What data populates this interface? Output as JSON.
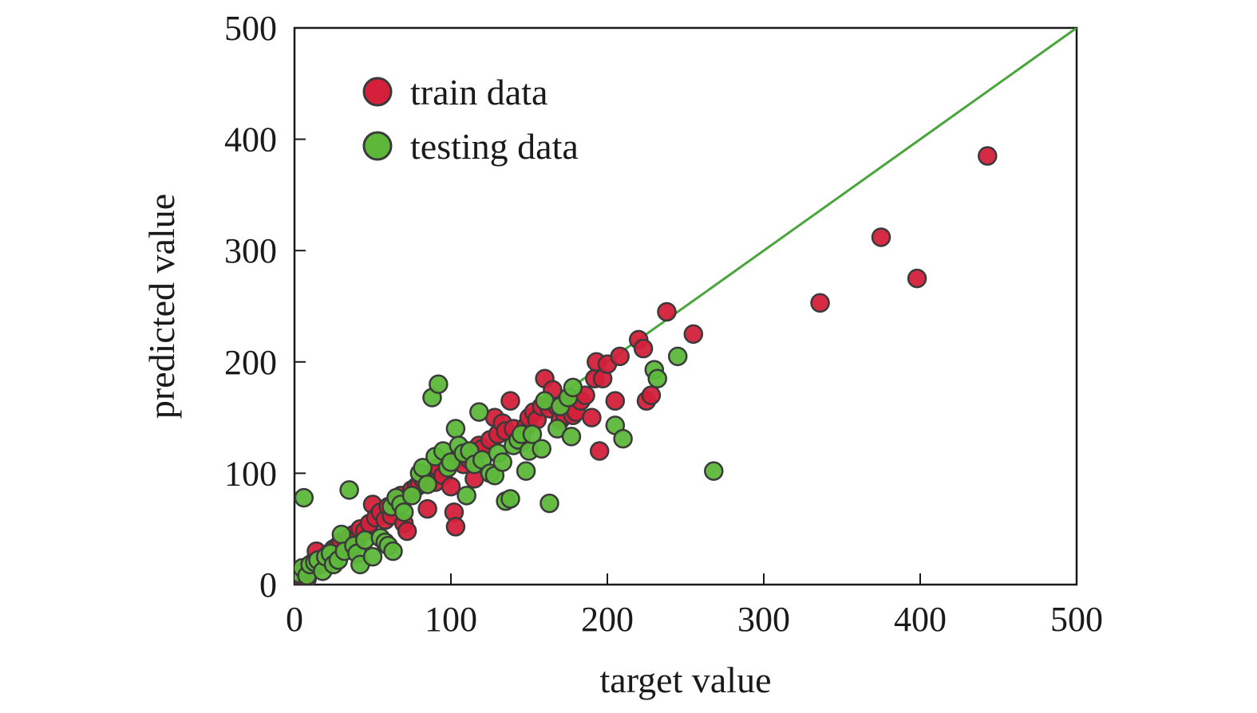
{
  "chart_data": {
    "type": "scatter",
    "xlabel": "target value",
    "ylabel": "predicted value",
    "xlim": [
      0,
      500
    ],
    "ylim": [
      0,
      500
    ],
    "xticks": [
      "0",
      "100",
      "200",
      "300",
      "400",
      "500"
    ],
    "yticks": [
      "0",
      "100",
      "200",
      "300",
      "400",
      "500"
    ],
    "grid": false,
    "legend_position": "top-left",
    "reference_line": {
      "x": [
        0,
        500
      ],
      "y": [
        0,
        500
      ],
      "color": "#4aa63c"
    },
    "series": [
      {
        "name": "train data",
        "color": "#d4203a",
        "points": [
          [
            2,
            3
          ],
          [
            4,
            8
          ],
          [
            6,
            12
          ],
          [
            8,
            5
          ],
          [
            10,
            15
          ],
          [
            12,
            20
          ],
          [
            14,
            30
          ],
          [
            16,
            18
          ],
          [
            18,
            22
          ],
          [
            20,
            25
          ],
          [
            22,
            28
          ],
          [
            25,
            32
          ],
          [
            28,
            35
          ],
          [
            30,
            38
          ],
          [
            32,
            30
          ],
          [
            35,
            42
          ],
          [
            38,
            45
          ],
          [
            40,
            40
          ],
          [
            42,
            50
          ],
          [
            45,
            48
          ],
          [
            48,
            55
          ],
          [
            50,
            72
          ],
          [
            52,
            60
          ],
          [
            55,
            65
          ],
          [
            58,
            58
          ],
          [
            60,
            70
          ],
          [
            62,
            62
          ],
          [
            65,
            75
          ],
          [
            68,
            80
          ],
          [
            70,
            55
          ],
          [
            72,
            48
          ],
          [
            75,
            85
          ],
          [
            78,
            88
          ],
          [
            80,
            90
          ],
          [
            82,
            95
          ],
          [
            85,
            68
          ],
          [
            88,
            100
          ],
          [
            90,
            92
          ],
          [
            92,
            105
          ],
          [
            95,
            98
          ],
          [
            98,
            110
          ],
          [
            100,
            88
          ],
          [
            102,
            65
          ],
          [
            103,
            52
          ],
          [
            105,
            115
          ],
          [
            108,
            108
          ],
          [
            110,
            118
          ],
          [
            112,
            112
          ],
          [
            115,
            95
          ],
          [
            118,
            125
          ],
          [
            120,
            122
          ],
          [
            125,
            130
          ],
          [
            128,
            150
          ],
          [
            130,
            135
          ],
          [
            133,
            145
          ],
          [
            135,
            138
          ],
          [
            138,
            165
          ],
          [
            140,
            140
          ],
          [
            143,
            130
          ],
          [
            145,
            128
          ],
          [
            148,
            142
          ],
          [
            150,
            150
          ],
          [
            153,
            155
          ],
          [
            155,
            148
          ],
          [
            158,
            160
          ],
          [
            160,
            185
          ],
          [
            163,
            158
          ],
          [
            165,
            175
          ],
          [
            168,
            160
          ],
          [
            170,
            148
          ],
          [
            173,
            152
          ],
          [
            176,
            168
          ],
          [
            178,
            152
          ],
          [
            180,
            155
          ],
          [
            183,
            165
          ],
          [
            186,
            170
          ],
          [
            190,
            150
          ],
          [
            192,
            185
          ],
          [
            193,
            200
          ],
          [
            195,
            120
          ],
          [
            197,
            185
          ],
          [
            200,
            198
          ],
          [
            205,
            165
          ],
          [
            208,
            205
          ],
          [
            220,
            220
          ],
          [
            223,
            212
          ],
          [
            225,
            165
          ],
          [
            228,
            170
          ],
          [
            238,
            245
          ],
          [
            255,
            225
          ],
          [
            336,
            253
          ],
          [
            375,
            312
          ],
          [
            398,
            275
          ],
          [
            443,
            385
          ]
        ]
      },
      {
        "name": "testing data",
        "color": "#5db83a",
        "points": [
          [
            3,
            10
          ],
          [
            5,
            15
          ],
          [
            6,
            78
          ],
          [
            8,
            8
          ],
          [
            10,
            18
          ],
          [
            13,
            20
          ],
          [
            15,
            22
          ],
          [
            18,
            12
          ],
          [
            20,
            25
          ],
          [
            23,
            28
          ],
          [
            25,
            18
          ],
          [
            28,
            22
          ],
          [
            30,
            45
          ],
          [
            32,
            30
          ],
          [
            35,
            85
          ],
          [
            38,
            35
          ],
          [
            40,
            28
          ],
          [
            42,
            18
          ],
          [
            45,
            40
          ],
          [
            50,
            25
          ],
          [
            55,
            42
          ],
          [
            58,
            38
          ],
          [
            60,
            35
          ],
          [
            62,
            70
          ],
          [
            63,
            30
          ],
          [
            65,
            78
          ],
          [
            68,
            72
          ],
          [
            70,
            65
          ],
          [
            75,
            80
          ],
          [
            80,
            100
          ],
          [
            82,
            105
          ],
          [
            85,
            90
          ],
          [
            88,
            168
          ],
          [
            90,
            115
          ],
          [
            92,
            180
          ],
          [
            95,
            120
          ],
          [
            98,
            105
          ],
          [
            100,
            110
          ],
          [
            103,
            140
          ],
          [
            105,
            125
          ],
          [
            108,
            118
          ],
          [
            110,
            80
          ],
          [
            112,
            120
          ],
          [
            115,
            108
          ],
          [
            118,
            155
          ],
          [
            120,
            112
          ],
          [
            125,
            100
          ],
          [
            128,
            98
          ],
          [
            130,
            118
          ],
          [
            133,
            110
          ],
          [
            135,
            75
          ],
          [
            138,
            77
          ],
          [
            140,
            125
          ],
          [
            143,
            130
          ],
          [
            145,
            135
          ],
          [
            148,
            102
          ],
          [
            150,
            120
          ],
          [
            152,
            135
          ],
          [
            158,
            122
          ],
          [
            160,
            165
          ],
          [
            163,
            73
          ],
          [
            168,
            140
          ],
          [
            170,
            160
          ],
          [
            175,
            168
          ],
          [
            177,
            133
          ],
          [
            178,
            177
          ],
          [
            205,
            143
          ],
          [
            210,
            131
          ],
          [
            230,
            193
          ],
          [
            232,
            185
          ],
          [
            245,
            205
          ],
          [
            268,
            102
          ]
        ]
      }
    ]
  }
}
